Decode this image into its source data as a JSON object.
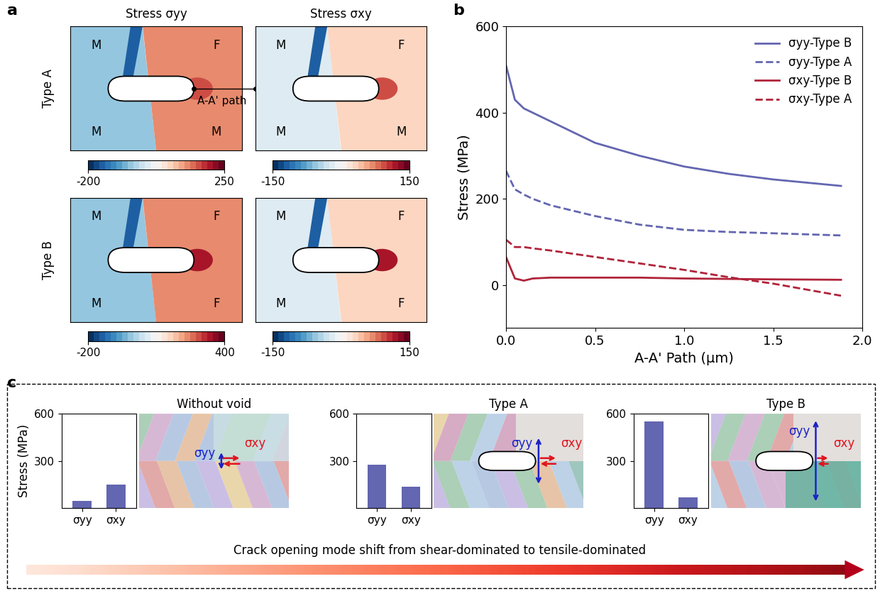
{
  "panel_labels": [
    "a",
    "b",
    "c"
  ],
  "panel_a": {
    "columns": [
      "Stress σyy",
      "Stress σxy"
    ],
    "rows": [
      {
        "name": "Type A",
        "grains": [
          "M",
          "F",
          "M",
          "M"
        ],
        "path_label": "A-A' path",
        "colorbars": [
          {
            "range": [
              -200,
              250
            ],
            "ticks": [
              -200,
              250
            ]
          },
          {
            "range": [
              -150,
              150
            ],
            "ticks": [
              -150,
              150
            ]
          }
        ]
      },
      {
        "name": "Type B",
        "grains": [
          "M",
          "F",
          "M",
          "F"
        ],
        "colorbars": [
          {
            "range": [
              -200,
              400
            ],
            "ticks": [
              -200,
              400
            ]
          },
          {
            "range": [
              -150,
              150
            ],
            "ticks": [
              -150,
              150
            ]
          }
        ]
      }
    ]
  },
  "chart_data": [
    {
      "type": "line",
      "xlabel": "A-A' Path (μm)",
      "ylabel": "Stress (MPa)",
      "x": [
        0,
        0.05,
        0.1,
        0.15,
        0.25,
        0.5,
        0.75,
        1.0,
        1.25,
        1.5,
        1.88
      ],
      "series": [
        {
          "name": "σyy-Type B",
          "color": "#6366b0",
          "line_style": "solid",
          "values": [
            510,
            430,
            410,
            400,
            380,
            330,
            300,
            275,
            258,
            245,
            230
          ]
        },
        {
          "name": "σyy-Type A",
          "color": "#6366b0",
          "line_style": "dashed",
          "values": [
            265,
            222,
            210,
            200,
            185,
            160,
            140,
            128,
            123,
            120,
            115
          ]
        },
        {
          "name": "σxy-Type B",
          "color": "#b0243a",
          "line_style": "solid",
          "values": [
            65,
            15,
            10,
            15,
            17,
            17,
            17,
            15,
            14,
            13,
            12
          ]
        },
        {
          "name": "σxy-Type A",
          "color": "#b0243a",
          "line_style": "dashed",
          "values": [
            105,
            88,
            88,
            85,
            80,
            65,
            50,
            35,
            18,
            3,
            -25
          ]
        }
      ],
      "xlim": [
        0,
        2
      ],
      "xticks": [
        {
          "value": 0,
          "label": "0.0"
        },
        {
          "value": 0.5,
          "label": "0.5"
        },
        {
          "value": 1.0,
          "label": "1.0"
        },
        {
          "value": 1.5,
          "label": "1.5"
        },
        {
          "value": 2.0,
          "label": "2.0"
        }
      ],
      "ylim": [
        -100,
        600
      ],
      "yticks": [
        0,
        200,
        400,
        600
      ],
      "legend": "upper right"
    },
    {
      "type": "bar",
      "title": "Without void",
      "ylabel": "Stress (MPa)",
      "categories": [
        "σyy",
        "σxy"
      ],
      "values": [
        45,
        150
      ],
      "color": "#6366b0",
      "ylim": [
        0,
        600
      ],
      "yticks": [
        300,
        600
      ]
    },
    {
      "type": "bar",
      "title": "Type A",
      "categories": [
        "σyy",
        "σxy"
      ],
      "values": [
        275,
        135
      ],
      "color": "#6366b0",
      "ylim": [
        0,
        600
      ],
      "yticks": [
        300,
        600
      ]
    },
    {
      "type": "bar",
      "title": "Type B",
      "categories": [
        "σyy",
        "σxy"
      ],
      "values": [
        550,
        70
      ],
      "color": "#6366b0",
      "ylim": [
        0,
        600
      ],
      "yticks": [
        300,
        600
      ]
    }
  ],
  "panel_c_arrows": [
    "σyy",
    "σxy"
  ],
  "panel_c_caption": "Crack opening mode shift from shear-dominated to tensile-dominated"
}
